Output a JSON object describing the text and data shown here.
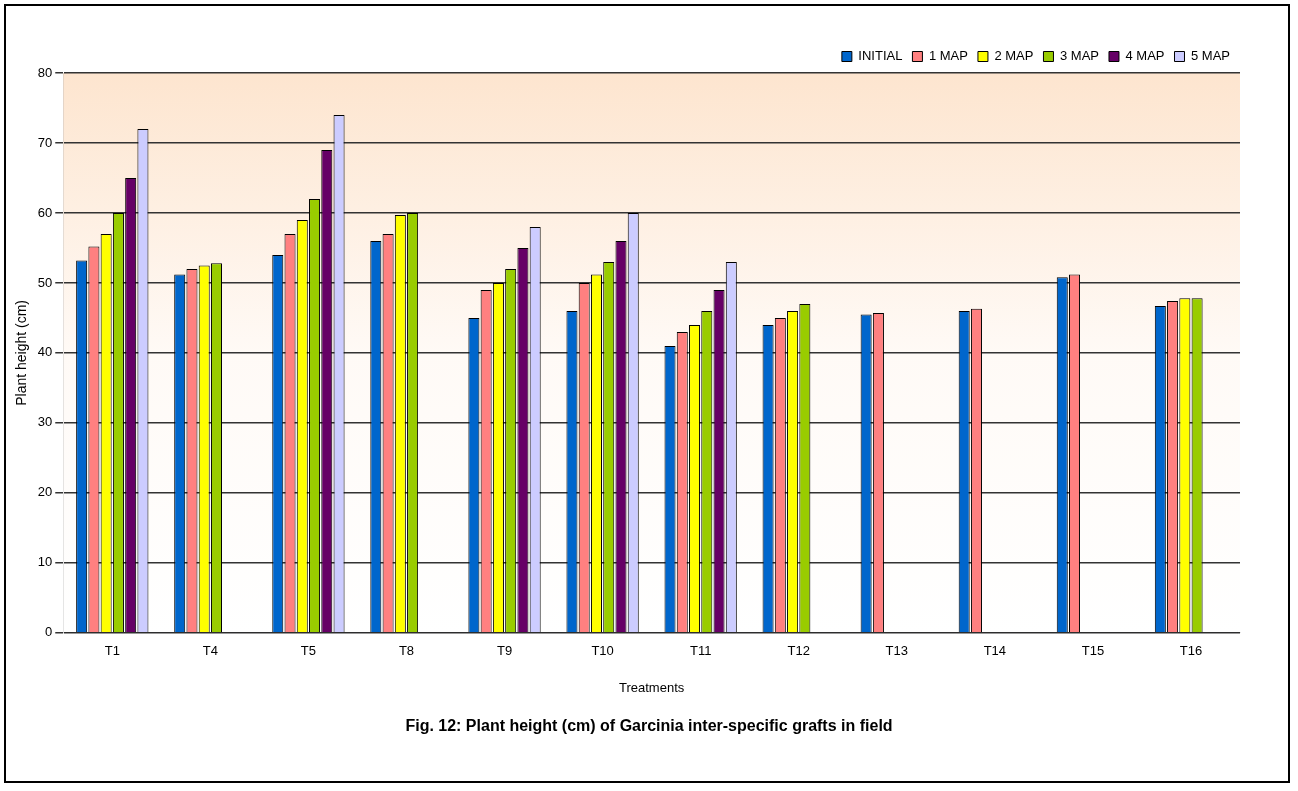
{
  "chart_data": {
    "type": "bar",
    "title": "Fig. 12: Plant height (cm) of Garcinia inter-specific grafts in field",
    "xlabel": "Treatments",
    "ylabel": "Plant height (cm)",
    "categories": [
      "T1",
      "T4",
      "T5",
      "T8",
      "T9",
      "T10",
      "T11",
      "T12",
      "T13",
      "T14",
      "T15",
      "T16"
    ],
    "series": [
      {
        "name": "INITIAL",
        "color": "#0066cc",
        "values": [
          53.2,
          51.2,
          54,
          56,
          45,
          46,
          41,
          44,
          45.5,
          46,
          50.8,
          46.7
        ]
      },
      {
        "name": "1 MAP",
        "color": "#ff8080",
        "values": [
          55.2,
          52,
          57,
          57,
          49,
          50,
          43,
          45,
          45.7,
          46.3,
          51.2,
          47.4
        ]
      },
      {
        "name": "2 MAP",
        "color": "#ffff00",
        "values": [
          57,
          52.5,
          59,
          59.7,
          50,
          51.2,
          44,
          46,
          0,
          0,
          0,
          47.8
        ]
      },
      {
        "name": "3 MAP",
        "color": "#99cc00",
        "values": [
          60,
          52.8,
          62,
          60,
          52,
          53,
          46,
          47,
          0,
          0,
          0,
          47.8
        ]
      },
      {
        "name": "4 MAP",
        "color": "#660066",
        "values": [
          65,
          0,
          69,
          0,
          55,
          56,
          49,
          0,
          0,
          0,
          0,
          0
        ]
      },
      {
        "name": "5 MAP",
        "color": "#ccccff",
        "values": [
          72,
          0,
          74,
          0,
          58,
          60,
          53,
          0,
          0,
          0,
          0,
          0
        ]
      }
    ],
    "ylim": [
      0,
      80
    ],
    "yticks": [
      0,
      10,
      20,
      30,
      40,
      50,
      60,
      70,
      80
    ],
    "grid": "y",
    "legend": "top right"
  }
}
